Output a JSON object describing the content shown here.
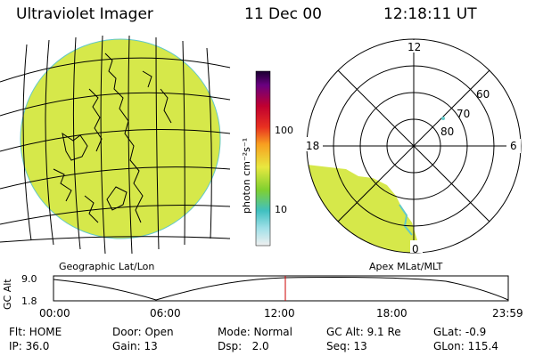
{
  "header": {
    "instrument": "Ultraviolet Imager",
    "date": "11 Dec 00",
    "time": "12:18:11 UT"
  },
  "colorbar": {
    "unit_label": "photon cm⁻²s⁻¹",
    "ticks": [
      "100",
      "10"
    ]
  },
  "globe_panel": {
    "caption": "Geographic Lat/Lon"
  },
  "polar_panel": {
    "caption": "Apex MLat/MLT",
    "mlt_labels": [
      "12",
      "18",
      "6",
      "0"
    ],
    "mlat_labels": [
      "60",
      "70",
      "80"
    ]
  },
  "orbit_plot": {
    "ylabel": "GC Alt",
    "y_ticks": [
      "9.0",
      "1.8"
    ],
    "x_ticks": [
      "00:00",
      "06:00",
      "12:00",
      "18:00",
      "23:59"
    ]
  },
  "footer": {
    "flt": "Flt: HOME",
    "door": "Door: Open",
    "mode": "Mode: Normal",
    "gc_alt": "GC Alt: 9.1 Re",
    "glat": "GLat:  -0.9",
    "ip": "IP: 36.0",
    "gain": "Gain: 13",
    "dsp": "Dsp:   2.0",
    "seq": "Seq: 13",
    "glon": "GLon: 115.4"
  },
  "colors": {
    "emission": "#d6e84a",
    "background": "#ffffff",
    "grid": "#000000",
    "current_time_marker": "#cc0000"
  }
}
